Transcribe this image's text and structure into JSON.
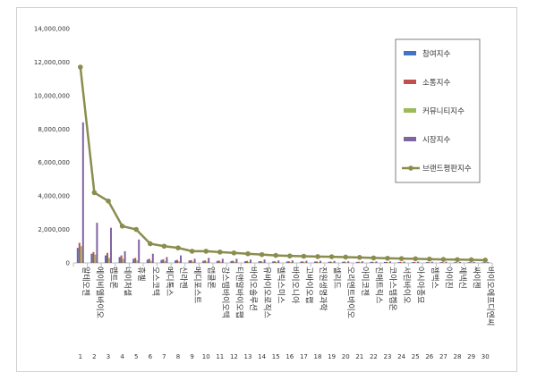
{
  "chart_data": {
    "type": "bar",
    "title": "",
    "xlabel": "",
    "ylabel": "",
    "ylim": [
      0,
      14000000
    ],
    "yticks": [
      "0",
      "2,000,000",
      "4,000,000",
      "6,000,000",
      "8,000,000",
      "10,000,000",
      "12,000,000",
      "14,000,000"
    ],
    "grid": false,
    "legend_position": "top-right",
    "categories": [
      "알테오젠",
      "에이비엘바이오",
      "펩트론",
      "네이처셀",
      "휴젤",
      "오스코텍",
      "메디톡스",
      "신라젠",
      "메디포스트",
      "앱클론",
      "강스템바이오텍",
      "티앤알바이오팹",
      "바이오솔루션",
      "유바이오로직스",
      "헬릭스미스",
      "바이오니아",
      "고바이오랩",
      "진원생명과학",
      "셀리드",
      "오리엔트바이오",
      "아미코젠",
      "진매트릭스",
      "코아스템켐온",
      "서린바이오",
      "아시아종묘",
      "젬백스",
      "아이진",
      "제넥신",
      "싸이젠",
      "바이오에프디엔씨"
    ],
    "ranks": [
      "1",
      "2",
      "3",
      "4",
      "5",
      "6",
      "7",
      "8",
      "9",
      "10",
      "11",
      "12",
      "13",
      "14",
      "15",
      "16",
      "17",
      "18",
      "19",
      "20",
      "21",
      "22",
      "23",
      "24",
      "25",
      "26",
      "27",
      "28",
      "29",
      "30"
    ],
    "series": [
      {
        "name": "참여지수",
        "kind": "bar",
        "color": "#4472c4",
        "values": [
          900000,
          550000,
          450000,
          350000,
          250000,
          200000,
          180000,
          150000,
          150000,
          130000,
          120000,
          110000,
          100000,
          100000,
          90000,
          90000,
          80000,
          80000,
          70000,
          70000,
          60000,
          60000,
          60000,
          50000,
          50000,
          50000,
          40000,
          40000,
          40000,
          30000
        ]
      },
      {
        "name": "소통지수",
        "kind": "bar",
        "color": "#c0504d",
        "values": [
          1200000,
          650000,
          600000,
          450000,
          300000,
          250000,
          220000,
          180000,
          170000,
          150000,
          140000,
          130000,
          120000,
          110000,
          100000,
          100000,
          90000,
          90000,
          80000,
          80000,
          70000,
          70000,
          60000,
          60000,
          60000,
          50000,
          50000,
          40000,
          40000,
          40000
        ]
      },
      {
        "name": "커뮤니티지수",
        "kind": "bar",
        "color": "#9bbb59",
        "values": [
          1000000,
          500000,
          300000,
          250000,
          150000,
          120000,
          100000,
          90000,
          80000,
          70000,
          70000,
          60000,
          60000,
          50000,
          50000,
          50000,
          40000,
          40000,
          40000,
          30000,
          30000,
          30000,
          30000,
          30000,
          20000,
          20000,
          20000,
          20000,
          20000,
          20000
        ]
      },
      {
        "name": "시장지수",
        "kind": "bar",
        "color": "#8064a2",
        "values": [
          8400000,
          2400000,
          2100000,
          700000,
          1400000,
          550000,
          350000,
          450000,
          250000,
          300000,
          250000,
          250000,
          200000,
          200000,
          150000,
          150000,
          130000,
          130000,
          120000,
          100000,
          100000,
          90000,
          90000,
          80000,
          80000,
          70000,
          70000,
          60000,
          60000,
          50000
        ]
      },
      {
        "name": "브랜드평판지수",
        "kind": "line",
        "color": "#8a8d4e",
        "values": [
          11700000,
          4200000,
          3700000,
          2200000,
          2000000,
          1150000,
          1000000,
          900000,
          700000,
          700000,
          650000,
          600000,
          550000,
          500000,
          450000,
          420000,
          400000,
          380000,
          370000,
          350000,
          330000,
          300000,
          280000,
          260000,
          250000,
          230000,
          210000,
          200000,
          190000,
          170000
        ]
      }
    ]
  }
}
